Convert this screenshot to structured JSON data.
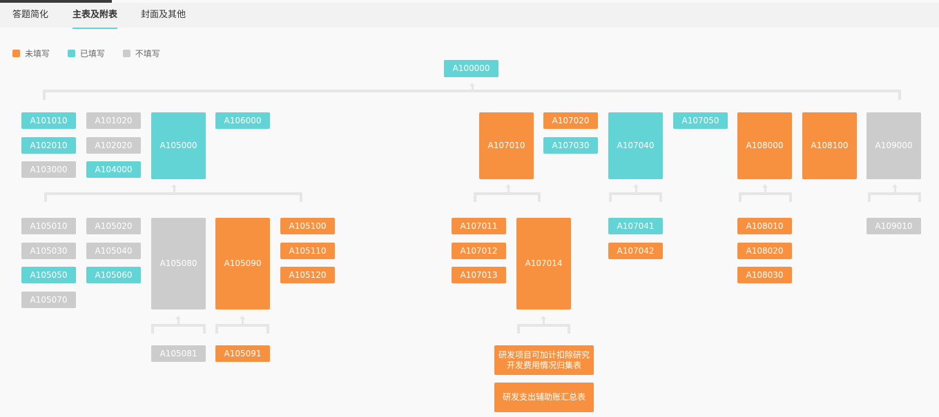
{
  "colors": {
    "unfilled": "#f7913f",
    "filled": "#62d4d6",
    "not_required": "#cccccc"
  },
  "tabs": [
    {
      "label": "答题简化"
    },
    {
      "label": "主表及附表",
      "active": true
    },
    {
      "label": "封面及其他"
    }
  ],
  "legend": [
    {
      "label": "未填写",
      "status": "unfilled"
    },
    {
      "label": "已填写",
      "status": "filled"
    },
    {
      "label": "不填写",
      "status": "not_required"
    }
  ],
  "nodes": [
    {
      "label": "A100000",
      "status": "filled"
    },
    {
      "label": "A101010",
      "status": "filled"
    },
    {
      "label": "A101020",
      "status": "not_required"
    },
    {
      "label": "A105000",
      "status": "filled"
    },
    {
      "label": "A106000",
      "status": "filled"
    },
    {
      "label": "A102010",
      "status": "filled"
    },
    {
      "label": "A102020",
      "status": "not_required"
    },
    {
      "label": "A103000",
      "status": "not_required"
    },
    {
      "label": "A104000",
      "status": "filled"
    },
    {
      "label": "A107010",
      "status": "unfilled"
    },
    {
      "label": "A107020",
      "status": "unfilled"
    },
    {
      "label": "A107030",
      "status": "filled"
    },
    {
      "label": "A107040",
      "status": "filled"
    },
    {
      "label": "A107050",
      "status": "filled"
    },
    {
      "label": "A108000",
      "status": "unfilled"
    },
    {
      "label": "A108100",
      "status": "unfilled"
    },
    {
      "label": "A109000",
      "status": "not_required"
    },
    {
      "label": "A105010",
      "status": "not_required"
    },
    {
      "label": "A105020",
      "status": "not_required"
    },
    {
      "label": "A105030",
      "status": "not_required"
    },
    {
      "label": "A105040",
      "status": "not_required"
    },
    {
      "label": "A105050",
      "status": "filled"
    },
    {
      "label": "A105060",
      "status": "filled"
    },
    {
      "label": "A105070",
      "status": "not_required"
    },
    {
      "label": "A105080",
      "status": "not_required"
    },
    {
      "label": "A105090",
      "status": "unfilled"
    },
    {
      "label": "A105100",
      "status": "unfilled"
    },
    {
      "label": "A105110",
      "status": "unfilled"
    },
    {
      "label": "A105120",
      "status": "unfilled"
    },
    {
      "label": "A107011",
      "status": "unfilled"
    },
    {
      "label": "A107012",
      "status": "unfilled"
    },
    {
      "label": "A107013",
      "status": "unfilled"
    },
    {
      "label": "A107014",
      "status": "unfilled"
    },
    {
      "label": "A107041",
      "status": "filled"
    },
    {
      "label": "A107042",
      "status": "unfilled"
    },
    {
      "label": "A108010",
      "status": "unfilled"
    },
    {
      "label": "A108020",
      "status": "unfilled"
    },
    {
      "label": "A108030",
      "status": "unfilled"
    },
    {
      "label": "A109010",
      "status": "not_required"
    },
    {
      "label": "A105081",
      "status": "not_required"
    },
    {
      "label": "A105091",
      "status": "unfilled"
    },
    {
      "label": "研发项目可加计扣除研究开发费用情况归集表",
      "status": "unfilled"
    },
    {
      "label": "研发支出辅助账汇总表",
      "status": "unfilled"
    }
  ]
}
